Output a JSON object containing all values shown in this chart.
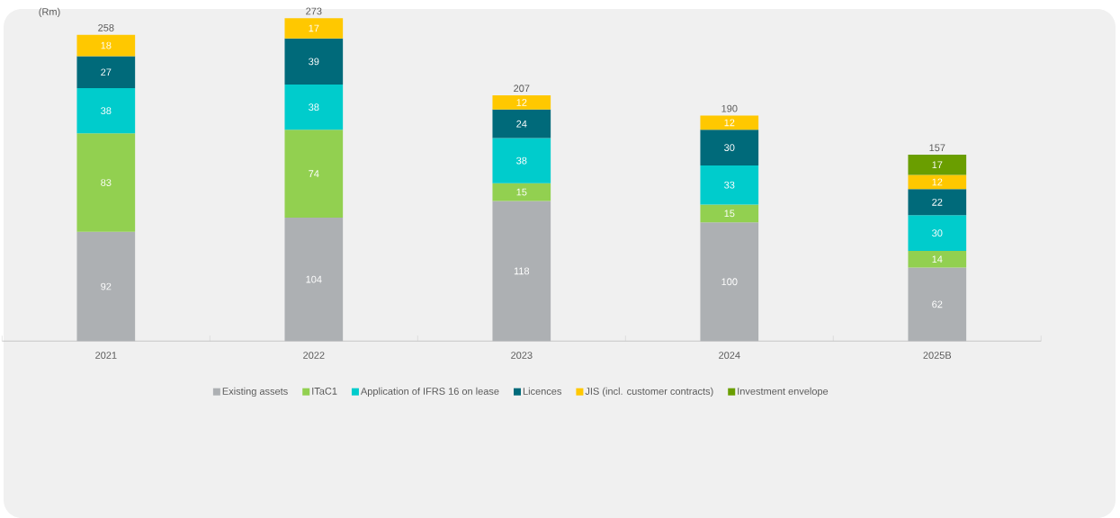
{
  "chart_data": {
    "type": "bar",
    "stacked": true,
    "ylabel": "(Rm)",
    "categories": [
      "2021",
      "2022",
      "2023",
      "2024",
      "2025B"
    ],
    "series": [
      {
        "name": "Existing assets",
        "color": "#adb0b3",
        "values": [
          92,
          104,
          118,
          100,
          62
        ]
      },
      {
        "name": "ITaC1",
        "color": "#92d050",
        "values": [
          83,
          74,
          15,
          15,
          14
        ]
      },
      {
        "name": "Application of IFRS 16 on lease",
        "color": "#00cccc",
        "values": [
          38,
          38,
          38,
          33,
          30
        ]
      },
      {
        "name": "Licences",
        "color": "#006a7a",
        "values": [
          27,
          39,
          24,
          30,
          22
        ]
      },
      {
        "name": "JIS (incl. customer contracts)",
        "color": "#ffc800",
        "values": [
          18,
          17,
          12,
          12,
          12
        ]
      },
      {
        "name": "Investment envelope",
        "color": "#6a9e00",
        "values": [
          null,
          null,
          null,
          null,
          17
        ]
      }
    ],
    "totals": [
      "258",
      "273",
      "207",
      "190",
      "157"
    ],
    "data_labels": true,
    "legend": "bottom"
  }
}
